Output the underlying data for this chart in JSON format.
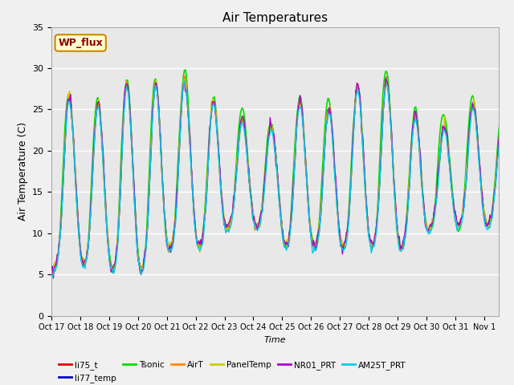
{
  "title": "Air Temperatures",
  "xlabel": "Time",
  "ylabel": "Air Temperature (C)",
  "ylim": [
    0,
    35
  ],
  "yticks": [
    0,
    5,
    10,
    15,
    20,
    25,
    30,
    35
  ],
  "x_tick_labels": [
    "Oct 17",
    "Oct 18",
    "Oct 19",
    "Oct 20",
    "Oct 21",
    "Oct 22",
    "Oct 23",
    "Oct 24",
    "Oct 25",
    "Oct 26",
    "Oct 27",
    "Oct 28",
    "Oct 29",
    "Oct 30",
    "Oct 31",
    "Nov 1"
  ],
  "series_names": [
    "li75_t",
    "li77_temp",
    "Tsonic",
    "AirT",
    "PanelTemp",
    "NR01_PRT",
    "AM25T_PRT"
  ],
  "series_colors": [
    "#dd0000",
    "#0000cc",
    "#00dd00",
    "#ff8800",
    "#cccc00",
    "#aa00cc",
    "#00ccee"
  ],
  "series_linewidths": [
    1.0,
    1.0,
    1.2,
    1.0,
    1.0,
    1.0,
    1.0
  ],
  "annotation_text": "WP_flux",
  "annotation_color": "#8b0000",
  "annotation_bg": "#ffffcc",
  "annotation_border": "#cc8800",
  "plot_bg_color": "#e8e8e8",
  "fig_bg_color": "#f0f0f0",
  "grid_color": "#ffffff",
  "num_points": 480,
  "random_seed": 7
}
